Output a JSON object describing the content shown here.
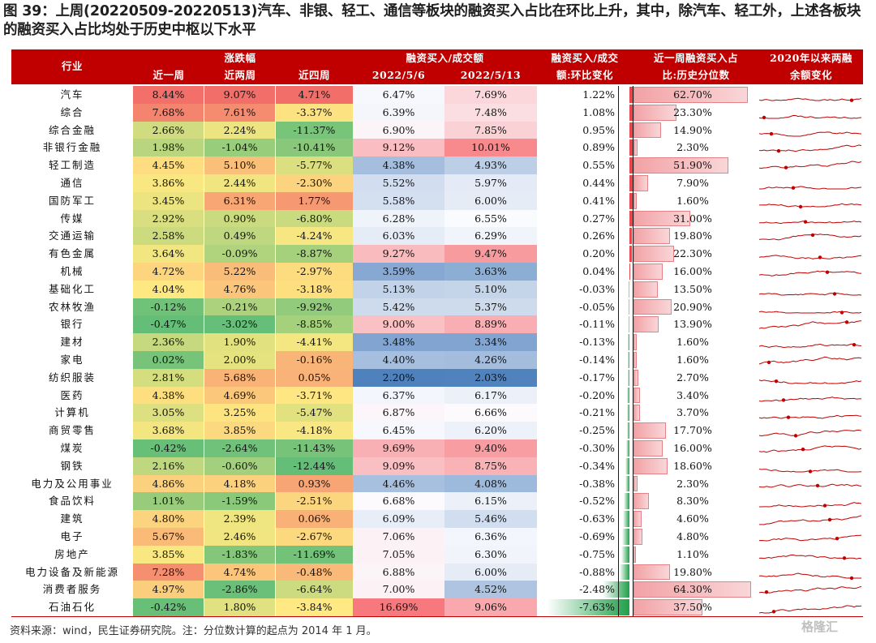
{
  "title": "图 39：上周(20220509-20220513)汽车、非银、轻工、通信等板块的融资买入占比在环比上升，其中，除汽车、轻工外，上述各板块的融资买入占比均处于历史中枢以下水平",
  "headers": {
    "industry": "行业",
    "change_group": "涨跌幅",
    "change_1w": "近一周",
    "change_2w": "近两周",
    "change_4w": "近四周",
    "ratio_group": "融资买入/成交额",
    "date1": "2022/5/6",
    "date2": "2022/5/13",
    "wow_line1": "融资买入/成交",
    "wow_line2": "额:环比变化",
    "pct_line1": "近一周融资买入占",
    "pct_line2": "比:历史分位数",
    "trend_line1": "2020年以来两融",
    "trend_line2": "余额变化"
  },
  "rows": [
    {
      "industry": "汽车",
      "w1": "8.44%",
      "w2": "9.07%",
      "w4": "4.71%",
      "r1": "6.47%",
      "r2": "7.69%",
      "wow": "1.22%",
      "pct": "62.70%"
    },
    {
      "industry": "综合",
      "w1": "7.68%",
      "w2": "7.61%",
      "w4": "-3.37%",
      "r1": "6.39%",
      "r2": "7.48%",
      "wow": "1.08%",
      "pct": "23.30%"
    },
    {
      "industry": "综合金融",
      "w1": "2.66%",
      "w2": "2.24%",
      "w4": "-11.37%",
      "r1": "6.90%",
      "r2": "7.85%",
      "wow": "0.95%",
      "pct": "14.90%"
    },
    {
      "industry": "非银行金融",
      "w1": "1.98%",
      "w2": "-1.04%",
      "w4": "-10.41%",
      "r1": "9.12%",
      "r2": "10.01%",
      "wow": "0.89%",
      "pct": "2.30%"
    },
    {
      "industry": "轻工制造",
      "w1": "4.45%",
      "w2": "5.10%",
      "w4": "-5.77%",
      "r1": "4.38%",
      "r2": "4.93%",
      "wow": "0.55%",
      "pct": "51.90%"
    },
    {
      "industry": "通信",
      "w1": "3.86%",
      "w2": "2.44%",
      "w4": "-2.30%",
      "r1": "5.52%",
      "r2": "5.97%",
      "wow": "0.44%",
      "pct": "7.90%"
    },
    {
      "industry": "国防军工",
      "w1": "3.45%",
      "w2": "6.31%",
      "w4": "1.77%",
      "r1": "5.58%",
      "r2": "6.00%",
      "wow": "0.41%",
      "pct": "1.60%"
    },
    {
      "industry": "传媒",
      "w1": "2.92%",
      "w2": "0.90%",
      "w4": "-6.80%",
      "r1": "6.28%",
      "r2": "6.55%",
      "wow": "0.27%",
      "pct": "31.00%"
    },
    {
      "industry": "交通运输",
      "w1": "2.58%",
      "w2": "0.49%",
      "w4": "-4.24%",
      "r1": "6.03%",
      "r2": "6.29%",
      "wow": "0.26%",
      "pct": "19.80%"
    },
    {
      "industry": "有色金属",
      "w1": "3.64%",
      "w2": "-0.09%",
      "w4": "-8.87%",
      "r1": "9.27%",
      "r2": "9.47%",
      "wow": "0.20%",
      "pct": "22.30%"
    },
    {
      "industry": "机械",
      "w1": "4.72%",
      "w2": "5.22%",
      "w4": "-2.97%",
      "r1": "3.59%",
      "r2": "3.63%",
      "wow": "0.04%",
      "pct": "16.00%"
    },
    {
      "industry": "基础化工",
      "w1": "4.04%",
      "w2": "4.76%",
      "w4": "-3.18%",
      "r1": "5.13%",
      "r2": "5.10%",
      "wow": "-0.03%",
      "pct": "13.50%"
    },
    {
      "industry": "农林牧渔",
      "w1": "-0.12%",
      "w2": "-0.21%",
      "w4": "-9.92%",
      "r1": "5.42%",
      "r2": "5.37%",
      "wow": "-0.05%",
      "pct": "20.90%"
    },
    {
      "industry": "银行",
      "w1": "-0.47%",
      "w2": "-3.02%",
      "w4": "-8.85%",
      "r1": "9.00%",
      "r2": "8.89%",
      "wow": "-0.11%",
      "pct": "13.90%"
    },
    {
      "industry": "建材",
      "w1": "2.36%",
      "w2": "1.90%",
      "w4": "-4.41%",
      "r1": "3.48%",
      "r2": "3.34%",
      "wow": "-0.13%",
      "pct": "1.60%"
    },
    {
      "industry": "家电",
      "w1": "0.02%",
      "w2": "2.00%",
      "w4": "-0.16%",
      "r1": "4.40%",
      "r2": "4.26%",
      "wow": "-0.14%",
      "pct": "1.60%"
    },
    {
      "industry": "纺织服装",
      "w1": "2.81%",
      "w2": "5.68%",
      "w4": "0.05%",
      "r1": "2.20%",
      "r2": "2.03%",
      "wow": "-0.17%",
      "pct": "2.70%"
    },
    {
      "industry": "医药",
      "w1": "4.38%",
      "w2": "4.69%",
      "w4": "-3.71%",
      "r1": "6.37%",
      "r2": "6.17%",
      "wow": "-0.20%",
      "pct": "3.40%"
    },
    {
      "industry": "计算机",
      "w1": "3.05%",
      "w2": "3.25%",
      "w4": "-5.47%",
      "r1": "6.87%",
      "r2": "6.66%",
      "wow": "-0.21%",
      "pct": "3.70%"
    },
    {
      "industry": "商贸零售",
      "w1": "3.68%",
      "w2": "3.85%",
      "w4": "-4.18%",
      "r1": "6.45%",
      "r2": "6.20%",
      "wow": "-0.25%",
      "pct": "17.70%"
    },
    {
      "industry": "煤炭",
      "w1": "-0.42%",
      "w2": "-2.64%",
      "w4": "-11.43%",
      "r1": "9.69%",
      "r2": "9.40%",
      "wow": "-0.30%",
      "pct": "16.00%"
    },
    {
      "industry": "钢铁",
      "w1": "2.16%",
      "w2": "-0.60%",
      "w4": "-12.44%",
      "r1": "9.09%",
      "r2": "8.75%",
      "wow": "-0.34%",
      "pct": "18.60%"
    },
    {
      "industry": "电力及公用事业",
      "w1": "4.86%",
      "w2": "4.18%",
      "w4": "0.93%",
      "r1": "4.46%",
      "r2": "4.08%",
      "wow": "-0.38%",
      "pct": "2.30%"
    },
    {
      "industry": "食品饮料",
      "w1": "1.01%",
      "w2": "-1.59%",
      "w4": "-2.51%",
      "r1": "6.68%",
      "r2": "6.15%",
      "wow": "-0.52%",
      "pct": "8.30%"
    },
    {
      "industry": "建筑",
      "w1": "4.80%",
      "w2": "2.39%",
      "w4": "0.06%",
      "r1": "6.09%",
      "r2": "5.46%",
      "wow": "-0.63%",
      "pct": "4.60%"
    },
    {
      "industry": "电子",
      "w1": "5.67%",
      "w2": "2.46%",
      "w4": "-2.67%",
      "r1": "7.06%",
      "r2": "6.36%",
      "wow": "-0.69%",
      "pct": "4.80%"
    },
    {
      "industry": "房地产",
      "w1": "3.85%",
      "w2": "-1.83%",
      "w4": "-11.69%",
      "r1": "7.05%",
      "r2": "6.30%",
      "wow": "-0.75%",
      "pct": "1.10%"
    },
    {
      "industry": "电力设备及新能源",
      "w1": "7.28%",
      "w2": "4.74%",
      "w4": "-0.48%",
      "r1": "6.88%",
      "r2": "6.00%",
      "wow": "-0.88%",
      "pct": "19.80%"
    },
    {
      "industry": "消费者服务",
      "w1": "4.97%",
      "w2": "-2.86%",
      "w4": "-6.64%",
      "r1": "7.00%",
      "r2": "4.52%",
      "wow": "-2.48%",
      "pct": "64.30%"
    },
    {
      "industry": "石油石化",
      "w1": "-0.42%",
      "w2": "1.80%",
      "w4": "-3.84%",
      "r1": "16.69%",
      "r2": "9.06%",
      "wow": "-7.63%",
      "pct": "37.50%"
    }
  ],
  "colors": {
    "header_band": "#c00000",
    "positive_bar": "#e8454c",
    "negative_bar": "#21a04a",
    "percentile_bar": "#f2a2a5",
    "sparkline": "#c00000"
  },
  "footer": {
    "source": "资料来源：wind，民生证券研究院。注：分位数计算的起点为 2014 年 1 月。",
    "watermark": "格隆汇"
  }
}
